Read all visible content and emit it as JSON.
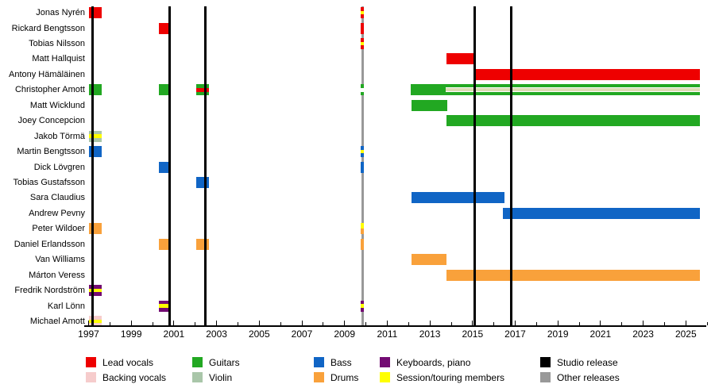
{
  "chart_data": {
    "type": "timeline",
    "description": "Band members timeline (gantt-style) with role colors and release lines",
    "x_axis": {
      "min": 1997,
      "max": 2026,
      "labeled_ticks": [
        "1997",
        "1999",
        "2001",
        "2003",
        "2005",
        "2007",
        "2009",
        "2011",
        "2013",
        "2015",
        "2017",
        "2019",
        "2021",
        "2023",
        "2025"
      ]
    },
    "colors": {
      "lead": "#ee0000",
      "backing": "#f6cccc",
      "guitars": "#22a822",
      "violin": "#a9c6a9",
      "bass": "#1065c5",
      "drums": "#f9a13b",
      "keys": "#730b73",
      "session": "#ffff00",
      "studio": "#000000",
      "other": "#999999",
      "cream": "#dcdcb4",
      "white": "#ffffff"
    },
    "release_lines": [
      {
        "year": 1997.2,
        "kind": "studio"
      },
      {
        "year": 2000.8,
        "kind": "studio"
      },
      {
        "year": 2002.46,
        "kind": "studio"
      },
      {
        "year": 2009.84,
        "kind": "other"
      },
      {
        "year": 2015.1,
        "kind": "studio"
      },
      {
        "year": 2016.8,
        "kind": "studio"
      }
    ],
    "mark_window": {
      "start": 2009.74,
      "end": 2009.92
    },
    "members": [
      {
        "name": "Jonas Nyrén",
        "bars": [
          {
            "start": 1997.02,
            "end": 1997.62,
            "stripes": [
              "lead"
            ]
          }
        ],
        "mark": [
          "lead",
          "session",
          "lead"
        ]
      },
      {
        "name": "Rickard Bengtsson",
        "bars": [
          {
            "start": 2000.3,
            "end": 2000.85,
            "stripes": [
              "lead"
            ]
          }
        ],
        "mark": [
          "lead"
        ]
      },
      {
        "name": "Tobias Nilsson",
        "bars": [],
        "mark": [
          "lead",
          "session",
          "lead"
        ]
      },
      {
        "name": "Matt Hallquist",
        "bars": [
          {
            "start": 2013.78,
            "end": 2015.12,
            "stripes": [
              "lead"
            ]
          }
        ],
        "mark": null
      },
      {
        "name": "Antony Hämäläinen",
        "bars": [
          {
            "start": 2015.12,
            "end": 2025.66,
            "stripes": [
              "lead"
            ]
          }
        ],
        "mark": null
      },
      {
        "name": "Christopher Amott",
        "bars": [
          {
            "start": 1997.02,
            "end": 1997.62,
            "stripes": [
              "guitars"
            ]
          },
          {
            "start": 2000.3,
            "end": 2000.85,
            "stripes": [
              "guitars"
            ]
          },
          {
            "start": 2002.05,
            "end": 2002.64,
            "stripes": [
              "guitars",
              "lead",
              "guitars"
            ]
          },
          {
            "start": 2012.1,
            "end": 2025.66,
            "stripes": [
              "guitars"
            ]
          },
          {
            "start": 2013.74,
            "end": 2025.66,
            "stripes": [
              "guitars*4",
              "white*1",
              "cream*4",
              "white*1",
              "guitars*4"
            ]
          }
        ],
        "mark": [
          "guitars",
          "white",
          "guitars"
        ]
      },
      {
        "name": "Matt Wicklund",
        "bars": [
          {
            "start": 2012.14,
            "end": 2013.81,
            "stripes": [
              "guitars"
            ]
          }
        ],
        "mark": null
      },
      {
        "name": "Joey Concepcion",
        "bars": [
          {
            "start": 2013.78,
            "end": 2025.66,
            "stripes": [
              "guitars"
            ]
          }
        ],
        "mark": null
      },
      {
        "name": "Jakob Törmä",
        "bars": [
          {
            "start": 1997.02,
            "end": 1997.62,
            "stripes": [
              "violin",
              "session",
              "violin"
            ]
          }
        ],
        "mark": null
      },
      {
        "name": "Martin Bengtsson",
        "bars": [
          {
            "start": 1997.02,
            "end": 1997.62,
            "stripes": [
              "bass"
            ]
          }
        ],
        "mark": [
          "bass",
          "session",
          "bass"
        ]
      },
      {
        "name": "Dick Lövgren",
        "bars": [
          {
            "start": 2000.3,
            "end": 2000.85,
            "stripes": [
              "bass"
            ]
          }
        ],
        "mark": [
          "bass"
        ]
      },
      {
        "name": "Tobias Gustafsson",
        "bars": [
          {
            "start": 2002.05,
            "end": 2002.64,
            "stripes": [
              "bass"
            ]
          }
        ],
        "mark": null
      },
      {
        "name": "Sara Claudius",
        "bars": [
          {
            "start": 2012.14,
            "end": 2016.5,
            "stripes": [
              "bass"
            ]
          }
        ],
        "mark": null
      },
      {
        "name": "Andrew Pevny",
        "bars": [
          {
            "start": 2016.42,
            "end": 2025.66,
            "stripes": [
              "bass"
            ]
          }
        ],
        "mark": null
      },
      {
        "name": "Peter Wildoer",
        "bars": [
          {
            "start": 1997.02,
            "end": 1997.62,
            "stripes": [
              "drums"
            ]
          }
        ],
        "mark": [
          "session",
          "drums"
        ]
      },
      {
        "name": "Daniel Erlandsson",
        "bars": [
          {
            "start": 2000.3,
            "end": 2000.85,
            "stripes": [
              "drums"
            ]
          },
          {
            "start": 2002.05,
            "end": 2002.64,
            "stripes": [
              "drums"
            ]
          }
        ],
        "mark": [
          "drums"
        ]
      },
      {
        "name": "Van Williams",
        "bars": [
          {
            "start": 2012.14,
            "end": 2013.78,
            "stripes": [
              "drums"
            ]
          }
        ],
        "mark": null
      },
      {
        "name": "Márton Veress",
        "bars": [
          {
            "start": 2013.78,
            "end": 2025.66,
            "stripes": [
              "drums"
            ]
          }
        ],
        "mark": null
      },
      {
        "name": "Fredrik Nordström",
        "bars": [
          {
            "start": 1997.02,
            "end": 1997.62,
            "stripes": [
              "keys",
              "session",
              "keys"
            ]
          }
        ],
        "mark": null
      },
      {
        "name": "Karl Lönn",
        "bars": [
          {
            "start": 2000.3,
            "end": 2000.85,
            "stripes": [
              "keys",
              "session",
              "keys"
            ]
          }
        ],
        "mark": [
          "keys",
          "session",
          "keys"
        ]
      },
      {
        "name": "Michael Amott",
        "bars": [
          {
            "start": 1997.02,
            "end": 1997.62,
            "stripes": [
              "backing",
              "session",
              "backing"
            ]
          }
        ],
        "mark": null
      }
    ],
    "legend": {
      "columns": [
        {
          "items": [
            {
              "label": "Lead vocals",
              "color": "lead"
            },
            {
              "label": "Backing vocals",
              "color": "backing"
            }
          ]
        },
        {
          "items": [
            {
              "label": "Guitars",
              "color": "guitars"
            },
            {
              "label": "Violin",
              "color": "violin"
            }
          ]
        },
        {
          "items": [
            {
              "label": "Bass",
              "color": "bass"
            },
            {
              "label": "Drums",
              "color": "drums"
            }
          ]
        },
        {
          "items": [
            {
              "label": "Keyboards, piano",
              "color": "keys"
            },
            {
              "label": "Session/touring members",
              "color": "session"
            }
          ]
        },
        {
          "items": [
            {
              "label": "Studio release",
              "color": "studio"
            },
            {
              "label": "Other releases",
              "color": "other"
            }
          ]
        }
      ]
    }
  }
}
